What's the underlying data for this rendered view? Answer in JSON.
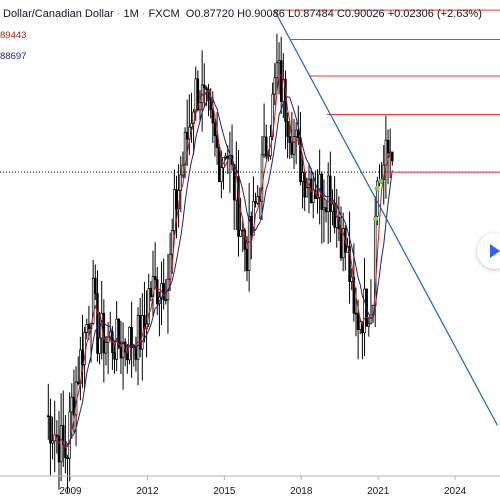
{
  "header": {
    "title": "Dollar/Canadian Dollar",
    "interval": "1M",
    "exchange": "FXCM",
    "ohlc": [
      {
        "label": "O",
        "value": "0.87720"
      },
      {
        "label": "H",
        "value": "0.90086"
      },
      {
        "label": "L",
        "value": "0.87484"
      },
      {
        "label": "C",
        "value": "0.90026"
      }
    ],
    "change": "+0.02306",
    "change_pct": "(+2.63%)"
  },
  "indicators": [
    {
      "value": "89443",
      "color": "#b71c1c"
    },
    {
      "value": "88697",
      "color": "#1a237e"
    }
  ],
  "colors": {
    "candle": "#000000",
    "ma_fast": "#b71c1c",
    "ma_slow": "#1a237e",
    "trendline": "#1565c0",
    "resistance": "#e53935",
    "marker": "#7cd644",
    "axis_text": "#131722",
    "nav_arrow": "#2962ff"
  },
  "nav_button": {
    "icon": "chevron-right-icon"
  },
  "chart_data": {
    "type": "candlestick",
    "x_ticks": [
      "2009",
      "2012",
      "2015",
      "2018",
      "2021",
      "2024"
    ],
    "ylim": [
      0.6,
      1.07
    ],
    "xlim": [
      2006.25,
      2025.75
    ],
    "last_price": 0.90026,
    "candles_yearly_approx": [
      {
        "year": 2008.5,
        "open": 0.66,
        "close": 0.62
      },
      {
        "year": 2009.5,
        "open": 0.67,
        "close": 0.78
      },
      {
        "year": 2010.5,
        "open": 0.74,
        "close": 0.73
      },
      {
        "year": 2011.5,
        "open": 0.73,
        "close": 0.74
      },
      {
        "year": 2012.5,
        "open": 0.78,
        "close": 0.8
      },
      {
        "year": 2013.5,
        "open": 0.86,
        "close": 0.98
      },
      {
        "year": 2014.5,
        "open": 0.98,
        "close": 0.91
      },
      {
        "year": 2015.5,
        "open": 0.93,
        "close": 0.82
      },
      {
        "year": 2016.5,
        "open": 0.84,
        "close": 0.96
      },
      {
        "year": 2017.5,
        "open": 1.0,
        "close": 0.92
      },
      {
        "year": 2018.5,
        "open": 0.9,
        "close": 0.88
      },
      {
        "year": 2019.5,
        "open": 0.89,
        "close": 0.81
      },
      {
        "year": 2020.5,
        "open": 0.75,
        "close": 0.78
      },
      {
        "year": 2021.2,
        "open": 0.87,
        "close": 0.93
      }
    ],
    "trendline": {
      "x0": 2016.95,
      "y0": 1.06,
      "x1": 2025.65,
      "y1": 0.65
    },
    "resistance_levels": [
      {
        "x_start": 2016.95,
        "price": 1.06
      },
      {
        "x_start": 2017.6,
        "price": 1.031
      },
      {
        "x_start": 2018.3,
        "price": 0.995
      },
      {
        "x_start": 2019.0,
        "price": 0.957
      }
    ],
    "current_price_line": {
      "price": 0.9,
      "style": "dotted"
    },
    "current_price_segment": {
      "x_start": 2021.3,
      "price": 0.9
    },
    "markers": [
      {
        "x": 2020.95,
        "price": 0.884
      },
      {
        "x": 2021.1,
        "price": 0.891
      },
      {
        "x": 2020.9,
        "price": 0.854
      }
    ]
  }
}
